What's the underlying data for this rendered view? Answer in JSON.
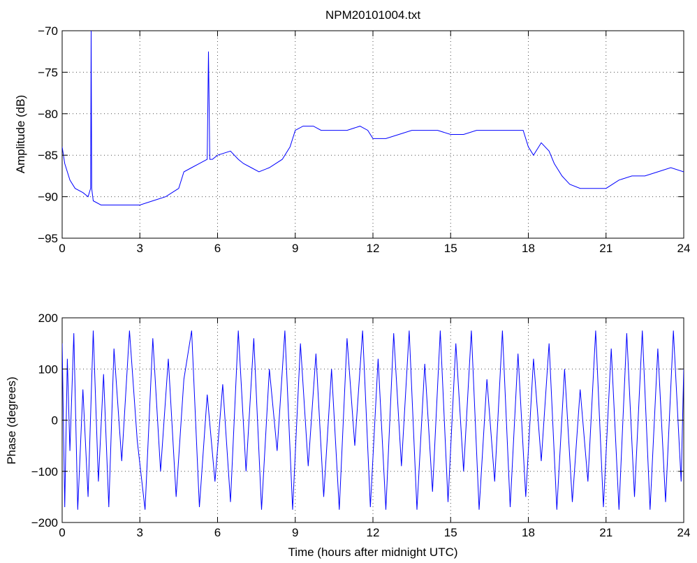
{
  "chart_data": [
    {
      "type": "line",
      "title": "NPM20101004.txt",
      "xlabel": "",
      "ylabel": "Amplitude (dB)",
      "xlim": [
        0,
        24
      ],
      "ylim": [
        -95,
        -70
      ],
      "xticks": [
        0,
        3,
        6,
        9,
        12,
        15,
        18,
        21,
        24
      ],
      "yticks": [
        -70,
        -75,
        -80,
        -85,
        -90,
        -95
      ],
      "grid": true,
      "color": "#0000ff",
      "series": [
        {
          "x": [
            0,
            0.1,
            0.3,
            0.5,
            0.8,
            1.0,
            1.1,
            1.12,
            1.14,
            1.2,
            1.5,
            2.0,
            2.5,
            3.0,
            3.5,
            4.0,
            4.5,
            4.7,
            5.0,
            5.3,
            5.6,
            5.65,
            5.7,
            5.8,
            6.0,
            6.5,
            6.8,
            7.0,
            7.3,
            7.6,
            8.0,
            8.5,
            8.8,
            9.0,
            9.3,
            9.7,
            10.0,
            10.5,
            11.0,
            11.5,
            11.8,
            12.0,
            12.5,
            13.0,
            13.5,
            14.0,
            14.5,
            15.0,
            15.5,
            16.0,
            16.5,
            17.0,
            17.5,
            17.8,
            18.0,
            18.2,
            18.5,
            18.8,
            19.0,
            19.3,
            19.6,
            20.0,
            20.5,
            21.0,
            21.5,
            22.0,
            22.5,
            23.0,
            23.5,
            24.0
          ],
          "y": [
            -84,
            -86,
            -88,
            -89,
            -89.5,
            -90,
            -89,
            -70,
            -89,
            -90.5,
            -91,
            -91,
            -91,
            -91,
            -90.5,
            -90,
            -89,
            -87,
            -86.5,
            -86,
            -85.5,
            -72.5,
            -85.5,
            -85.5,
            -85,
            -84.5,
            -85.5,
            -86,
            -86.5,
            -87,
            -86.5,
            -85.5,
            -84,
            -82,
            -81.5,
            -81.5,
            -82,
            -82,
            -82,
            -81.5,
            -82,
            -83,
            -83,
            -82.5,
            -82,
            -82,
            -82,
            -82.5,
            -82.5,
            -82,
            -82,
            -82,
            -82,
            -82,
            -84,
            -85,
            -83.5,
            -84.5,
            -86,
            -87.5,
            -88.5,
            -89,
            -89,
            -89,
            -88,
            -87.5,
            -87.5,
            -87,
            -86.5,
            -87
          ]
        }
      ]
    },
    {
      "type": "line",
      "title": "",
      "xlabel": "Time (hours after midnight UTC)",
      "ylabel": "Phase (degrees)",
      "xlim": [
        0,
        24
      ],
      "ylim": [
        -200,
        200
      ],
      "xticks": [
        0,
        3,
        6,
        9,
        12,
        15,
        18,
        21,
        24
      ],
      "yticks": [
        200,
        100,
        0,
        -100,
        -200
      ],
      "grid": true,
      "color": "#0000ff",
      "series": [
        {
          "x": [
            0,
            0.1,
            0.2,
            0.3,
            0.45,
            0.6,
            0.8,
            1.0,
            1.2,
            1.4,
            1.6,
            1.8,
            2.0,
            2.3,
            2.6,
            2.9,
            3.2,
            3.5,
            3.8,
            4.1,
            4.4,
            4.7,
            5.0,
            5.3,
            5.6,
            5.9,
            6.2,
            6.5,
            6.8,
            7.1,
            7.4,
            7.7,
            8.0,
            8.3,
            8.6,
            8.9,
            9.2,
            9.5,
            9.8,
            10.1,
            10.4,
            10.7,
            11.0,
            11.3,
            11.6,
            11.9,
            12.2,
            12.5,
            12.8,
            13.1,
            13.4,
            13.7,
            14.0,
            14.3,
            14.6,
            14.9,
            15.2,
            15.5,
            15.8,
            16.1,
            16.4,
            16.7,
            17.0,
            17.3,
            17.6,
            17.9,
            18.2,
            18.5,
            18.8,
            19.1,
            19.4,
            19.7,
            20.0,
            20.3,
            20.6,
            20.9,
            21.2,
            21.5,
            21.8,
            22.1,
            22.4,
            22.7,
            23.0,
            23.3,
            23.6,
            23.9,
            24.0
          ],
          "y": [
            150,
            -170,
            120,
            -60,
            170,
            -175,
            60,
            -150,
            175,
            -120,
            90,
            -170,
            140,
            -80,
            175,
            -40,
            -175,
            160,
            -100,
            120,
            -150,
            80,
            175,
            -170,
            50,
            -120,
            70,
            -160,
            175,
            -100,
            160,
            -175,
            100,
            -60,
            175,
            -175,
            150,
            -90,
            130,
            -150,
            100,
            -175,
            160,
            -50,
            175,
            -170,
            120,
            -175,
            170,
            -90,
            175,
            -175,
            110,
            -140,
            175,
            -160,
            150,
            -100,
            175,
            -175,
            80,
            -120,
            175,
            -170,
            130,
            -150,
            120,
            -80,
            150,
            -175,
            100,
            -160,
            60,
            -120,
            175,
            -170,
            140,
            -175,
            170,
            -150,
            175,
            -175,
            140,
            -160,
            175,
            -120,
            100
          ]
        }
      ]
    }
  ]
}
